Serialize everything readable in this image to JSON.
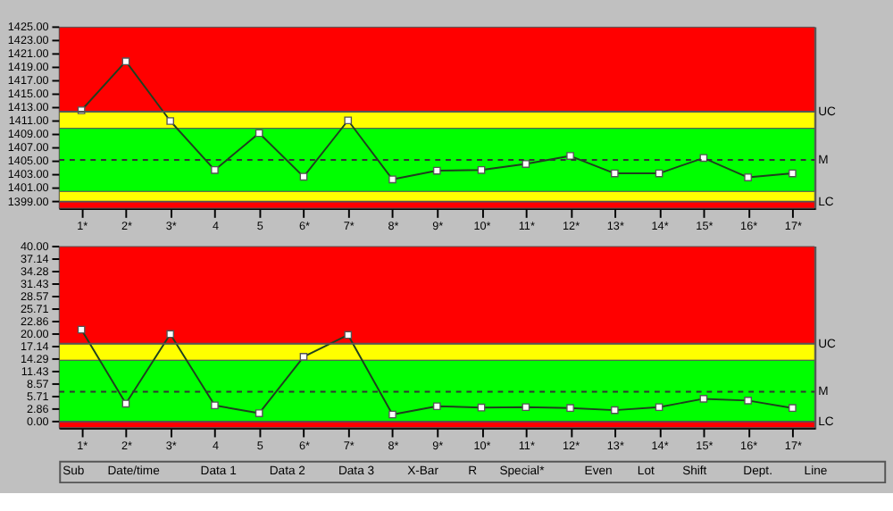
{
  "chart_data": [
    {
      "type": "line",
      "categories": [
        "1*",
        "2*",
        "3*",
        "4",
        "5",
        "6*",
        "7*",
        "8*",
        "9*",
        "10*",
        "11*",
        "12*",
        "13*",
        "14*",
        "15*",
        "16*",
        "17*"
      ],
      "series": [
        {
          "color": "#1f3f1f",
          "values": [
            1412.6,
            1419.9,
            1411.0,
            1403.7,
            1409.2,
            1402.7,
            1411.1,
            1402.3,
            1403.6,
            1403.7,
            1404.6,
            1405.8,
            1403.2,
            1403.2,
            1405.5,
            1402.6,
            1403.2
          ]
        }
      ],
      "ylim": [
        1398,
        1425
      ],
      "yticks": [
        {
          "value": 1399,
          "label": "1399.00"
        },
        {
          "value": 1401,
          "label": "1401.00"
        },
        {
          "value": 1403,
          "label": "1403.00"
        },
        {
          "value": 1405,
          "label": "1405.00"
        },
        {
          "value": 1407,
          "label": "1407.00"
        },
        {
          "value": 1409,
          "label": "1409.00"
        },
        {
          "value": 1411,
          "label": "1411.00"
        },
        {
          "value": 1413,
          "label": "1413.00"
        },
        {
          "value": 1415,
          "label": "1415.00"
        },
        {
          "value": 1417,
          "label": "1417.00"
        },
        {
          "value": 1419,
          "label": "1419.00"
        },
        {
          "value": 1421,
          "label": "1421.00"
        },
        {
          "value": 1423,
          "label": "1423.00"
        },
        {
          "value": 1425,
          "label": "1425.00"
        }
      ],
      "bands": [
        {
          "axis": "y",
          "from": 1412.4,
          "to": 1425,
          "color": "#ff0000"
        },
        {
          "axis": "y",
          "from": 1409.9,
          "to": 1412.4,
          "color": "#ffff00"
        },
        {
          "axis": "y",
          "from": 1400.5,
          "to": 1409.9,
          "color": "#00ff00"
        },
        {
          "axis": "y",
          "from": 1399.0,
          "to": 1400.5,
          "color": "#ffff00"
        },
        {
          "axis": "y",
          "from": 1398,
          "to": 1399.0,
          "color": "#ff0000"
        }
      ],
      "ref_lines": [
        {
          "axis": "y",
          "value": 1412.4,
          "label": "UC",
          "line_style": "solid",
          "color": "#555555"
        },
        {
          "axis": "y",
          "value": 1405.2,
          "label": "M",
          "line_style": "dashed",
          "color": "#333333"
        },
        {
          "axis": "y",
          "value": 1399.0,
          "label": "LC",
          "line_style": "solid",
          "color": "#555555"
        }
      ],
      "marker": "square",
      "line_style": "solid",
      "grid": false
    },
    {
      "type": "line",
      "categories": [
        "1*",
        "2*",
        "3*",
        "4",
        "5",
        "6*",
        "7*",
        "8*",
        "9*",
        "10*",
        "11*",
        "12*",
        "13*",
        "14*",
        "15*",
        "16*",
        "17*"
      ],
      "series": [
        {
          "color": "#1f3f1f",
          "values": [
            21.0,
            4.1,
            20.0,
            3.7,
            1.9,
            14.8,
            19.8,
            1.6,
            3.5,
            3.2,
            3.3,
            3.1,
            2.6,
            3.3,
            5.2,
            4.8,
            3.1
          ]
        }
      ],
      "ylim": [
        -1.4,
        40
      ],
      "yticks": [
        {
          "value": 0,
          "label": "0.00"
        },
        {
          "value": 2.86,
          "label": "2.86"
        },
        {
          "value": 5.71,
          "label": "5.71"
        },
        {
          "value": 8.57,
          "label": "8.57"
        },
        {
          "value": 11.43,
          "label": "11.43"
        },
        {
          "value": 14.29,
          "label": "14.29"
        },
        {
          "value": 17.14,
          "label": "17.14"
        },
        {
          "value": 20,
          "label": "20.00"
        },
        {
          "value": 22.86,
          "label": "22.86"
        },
        {
          "value": 25.71,
          "label": "25.71"
        },
        {
          "value": 28.57,
          "label": "28.57"
        },
        {
          "value": 31.43,
          "label": "31.43"
        },
        {
          "value": 34.28,
          "label": "34.28"
        },
        {
          "value": 37.14,
          "label": "37.14"
        },
        {
          "value": 40,
          "label": "40.00"
        }
      ],
      "bands": [
        {
          "axis": "y",
          "from": 17.8,
          "to": 40,
          "color": "#ff0000"
        },
        {
          "axis": "y",
          "from": 14.0,
          "to": 17.8,
          "color": "#ffff00"
        },
        {
          "axis": "y",
          "from": 0,
          "to": 14.0,
          "color": "#00ff00"
        },
        {
          "axis": "y",
          "from": -1.4,
          "to": 0,
          "color": "#ff0000"
        }
      ],
      "ref_lines": [
        {
          "axis": "y",
          "value": 17.8,
          "label": "UC",
          "line_style": "solid",
          "color": "#555555"
        },
        {
          "axis": "y",
          "value": 6.8,
          "label": "M",
          "line_style": "dashed",
          "color": "#333333"
        },
        {
          "axis": "y",
          "value": 0,
          "label": "LC",
          "line_style": "solid",
          "color": "#555555"
        }
      ],
      "marker": "square",
      "line_style": "solid",
      "grid": false,
      "annotations": [
        "Sub",
        "Date/time",
        "Data 1",
        "Data 2",
        "Data 3",
        "X-Bar",
        "R",
        "Special*",
        "Even",
        "Lot",
        "Shift",
        "Dept.",
        "Line"
      ]
    }
  ]
}
